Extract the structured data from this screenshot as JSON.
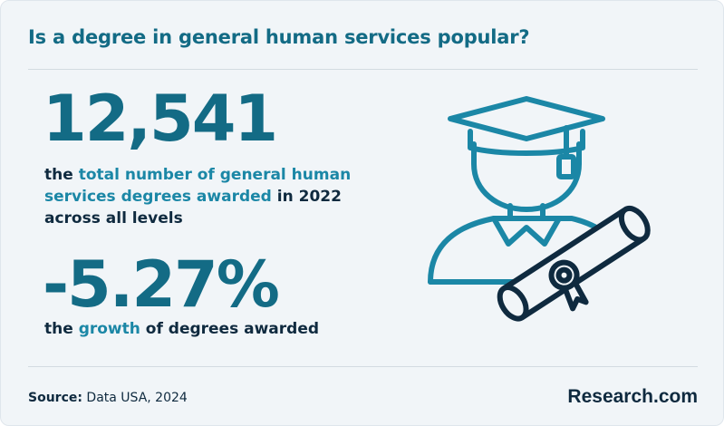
{
  "header": {
    "title": "Is a degree in general human services popular?"
  },
  "stats": [
    {
      "value": "12,541",
      "desc_prefix": "the ",
      "desc_highlight": "total number of general human services degrees awarded",
      "desc_suffix": " in 2022 across all levels"
    },
    {
      "value": "-5.27%",
      "desc_prefix": "the ",
      "desc_highlight": "growth",
      "desc_suffix": " of degrees awarded"
    }
  ],
  "footer": {
    "source_label": "Source:",
    "source_text": " Data USA, 2024",
    "logo": "Research.com"
  },
  "illustration": {
    "icon": "graduate-with-diploma-icon"
  },
  "colors": {
    "accent": "#136b85",
    "highlight": "#1b87a6",
    "dark": "#0f2a3f",
    "background": "#f1f5f8"
  }
}
